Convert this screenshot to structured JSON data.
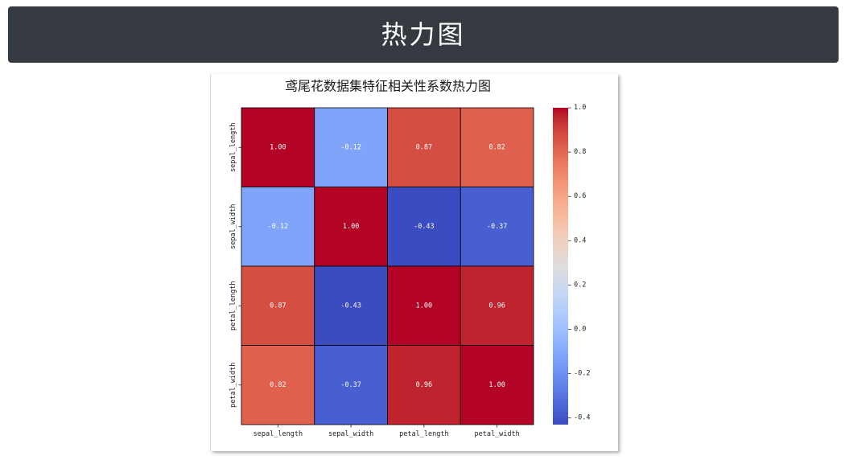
{
  "header": {
    "title": "热力图"
  },
  "chart_data": {
    "type": "heatmap",
    "title": "鸢尾花数据集特征相关性系数热力图",
    "x_labels": [
      "sepal_length",
      "sepal_width",
      "petal_length",
      "petal_width"
    ],
    "y_labels": [
      "sepal_length",
      "sepal_width",
      "petal_length",
      "petal_width"
    ],
    "values": [
      [
        1.0,
        -0.12,
        0.87,
        0.82
      ],
      [
        -0.12,
        1.0,
        -0.43,
        -0.37
      ],
      [
        0.87,
        -0.43,
        1.0,
        0.96
      ],
      [
        0.82,
        -0.37,
        0.96,
        1.0
      ]
    ],
    "annotations": [
      [
        "1.00",
        "-0.12",
        "0.87",
        "0.82"
      ],
      [
        "-0.12",
        "1.00",
        "-0.43",
        "-0.37"
      ],
      [
        "0.87",
        "-0.43",
        "1.00",
        "0.96"
      ],
      [
        "0.82",
        "-0.37",
        "0.96",
        "1.00"
      ]
    ],
    "annotation_color": "#ffffff",
    "cell_border_color": "#000000",
    "colormap": {
      "vmin": -0.43,
      "vmax": 1.0,
      "colors": [
        "#3b4cc0",
        "#445acc",
        "#4d68d7",
        "#5775e1",
        "#6282ea",
        "#6c8ef1",
        "#779af7",
        "#82a5fb",
        "#8db0fe",
        "#98b9ff",
        "#a3c2ff",
        "#aec9fd",
        "#b8d0f9",
        "#c2d5f4",
        "#ccd9ee",
        "#d5dbe6",
        "#dddddd",
        "#e5d8d1",
        "#ecd3c5",
        "#f1ccb9",
        "#f5c4ad",
        "#f7bba0",
        "#f7b194",
        "#f7a687",
        "#f49a7b",
        "#f18d6f",
        "#ec7f63",
        "#e57058",
        "#de604d",
        "#d55042",
        "#cb3e38",
        "#c0282f",
        "#b40426"
      ]
    },
    "colorbar": {
      "placement": "right",
      "ticks": [
        1.0,
        0.8,
        0.6,
        0.4,
        0.2,
        0.0,
        -0.2,
        -0.4
      ],
      "tick_labels": [
        "1.0",
        "0.8",
        "0.6",
        "0.4",
        "0.2",
        "0.0",
        "-0.2",
        "-0.4"
      ]
    },
    "grid": false
  }
}
